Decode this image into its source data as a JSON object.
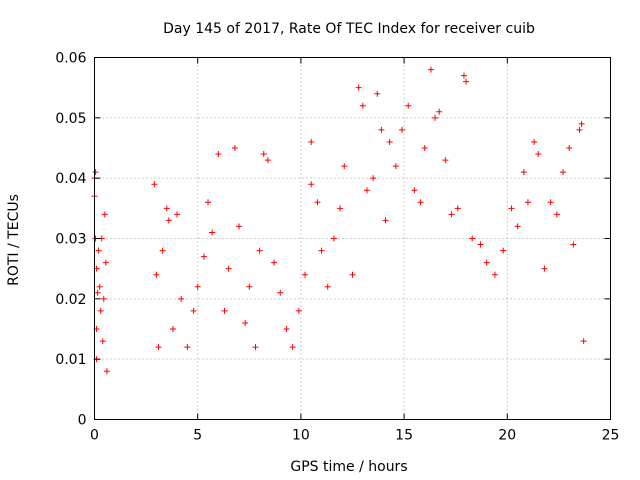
{
  "chart_data": {
    "type": "scatter",
    "title": "Day 145 of 2017, Rate Of TEC Index for receiver cuib",
    "xlabel": "GPS time / hours",
    "ylabel": "ROTI / TECUs",
    "xlim": [
      0,
      25
    ],
    "ylim": [
      0,
      0.06
    ],
    "x_ticks": [
      0,
      5,
      10,
      15,
      20,
      25
    ],
    "x_tick_labels": [
      "0",
      "5",
      "10",
      "15",
      "20",
      "25"
    ],
    "y_ticks": [
      0,
      0.01,
      0.02,
      0.03,
      0.04,
      0.05,
      0.06
    ],
    "y_tick_labels": [
      "0",
      "0.01",
      "0.02",
      "0.03",
      "0.04",
      "0.05",
      "0.06"
    ],
    "grid": true,
    "legend": "none",
    "marker": "plus",
    "color": "#ff0000",
    "segments_description": "Dense cloud of ROTI samples; gap between ~0.6 h and ~2.8 h",
    "series": [
      {
        "values": [
          [
            0.0,
            0.037
          ],
          [
            0.0,
            0.04
          ],
          [
            0.05,
            0.041
          ],
          [
            0.05,
            0.03
          ],
          [
            0.1,
            0.025
          ],
          [
            0.1,
            0.015
          ],
          [
            0.1,
            0.01
          ],
          [
            0.15,
            0.021
          ],
          [
            0.2,
            0.028
          ],
          [
            0.25,
            0.022
          ],
          [
            0.3,
            0.018
          ],
          [
            0.35,
            0.03
          ],
          [
            0.4,
            0.013
          ],
          [
            0.45,
            0.02
          ],
          [
            0.5,
            0.034
          ],
          [
            0.55,
            0.026
          ],
          [
            0.6,
            0.008
          ],
          [
            2.9,
            0.039
          ],
          [
            3.0,
            0.024
          ],
          [
            3.1,
            0.012
          ],
          [
            3.3,
            0.028
          ],
          [
            3.5,
            0.035
          ],
          [
            3.6,
            0.033
          ],
          [
            3.8,
            0.015
          ],
          [
            4.0,
            0.034
          ],
          [
            4.2,
            0.02
          ],
          [
            4.5,
            0.012
          ],
          [
            4.8,
            0.018
          ],
          [
            5.0,
            0.022
          ],
          [
            5.3,
            0.027
          ],
          [
            5.5,
            0.036
          ],
          [
            5.7,
            0.031
          ],
          [
            6.0,
            0.044
          ],
          [
            6.3,
            0.018
          ],
          [
            6.5,
            0.025
          ],
          [
            6.8,
            0.045
          ],
          [
            7.0,
            0.032
          ],
          [
            7.3,
            0.016
          ],
          [
            7.5,
            0.022
          ],
          [
            7.8,
            0.012
          ],
          [
            8.0,
            0.028
          ],
          [
            8.2,
            0.044
          ],
          [
            8.4,
            0.043
          ],
          [
            8.7,
            0.026
          ],
          [
            9.0,
            0.021
          ],
          [
            9.3,
            0.015
          ],
          [
            9.6,
            0.012
          ],
          [
            9.9,
            0.018
          ],
          [
            10.2,
            0.024
          ],
          [
            10.5,
            0.039
          ],
          [
            10.5,
            0.046
          ],
          [
            10.8,
            0.036
          ],
          [
            11.0,
            0.028
          ],
          [
            11.3,
            0.022
          ],
          [
            11.6,
            0.03
          ],
          [
            11.9,
            0.035
          ],
          [
            12.1,
            0.042
          ],
          [
            12.5,
            0.024
          ],
          [
            12.8,
            0.055
          ],
          [
            13.0,
            0.052
          ],
          [
            13.2,
            0.038
          ],
          [
            13.5,
            0.04
          ],
          [
            13.7,
            0.054
          ],
          [
            13.9,
            0.048
          ],
          [
            14.1,
            0.033
          ],
          [
            14.3,
            0.046
          ],
          [
            14.6,
            0.042
          ],
          [
            14.9,
            0.048
          ],
          [
            15.2,
            0.052
          ],
          [
            15.5,
            0.038
          ],
          [
            15.8,
            0.036
          ],
          [
            16.0,
            0.045
          ],
          [
            16.3,
            0.058
          ],
          [
            16.5,
            0.05
          ],
          [
            16.7,
            0.051
          ],
          [
            17.0,
            0.043
          ],
          [
            17.3,
            0.034
          ],
          [
            17.6,
            0.035
          ],
          [
            17.9,
            0.057
          ],
          [
            18.0,
            0.056
          ],
          [
            18.3,
            0.03
          ],
          [
            18.7,
            0.029
          ],
          [
            19.0,
            0.026
          ],
          [
            19.4,
            0.024
          ],
          [
            19.8,
            0.028
          ],
          [
            20.2,
            0.035
          ],
          [
            20.5,
            0.032
          ],
          [
            20.8,
            0.041
          ],
          [
            21.0,
            0.036
          ],
          [
            21.3,
            0.046
          ],
          [
            21.5,
            0.044
          ],
          [
            21.8,
            0.025
          ],
          [
            22.1,
            0.036
          ],
          [
            22.4,
            0.034
          ],
          [
            22.7,
            0.041
          ],
          [
            23.0,
            0.045
          ],
          [
            23.2,
            0.029
          ],
          [
            23.5,
            0.048
          ],
          [
            23.6,
            0.049
          ],
          [
            23.7,
            0.013
          ]
        ]
      }
    ]
  }
}
